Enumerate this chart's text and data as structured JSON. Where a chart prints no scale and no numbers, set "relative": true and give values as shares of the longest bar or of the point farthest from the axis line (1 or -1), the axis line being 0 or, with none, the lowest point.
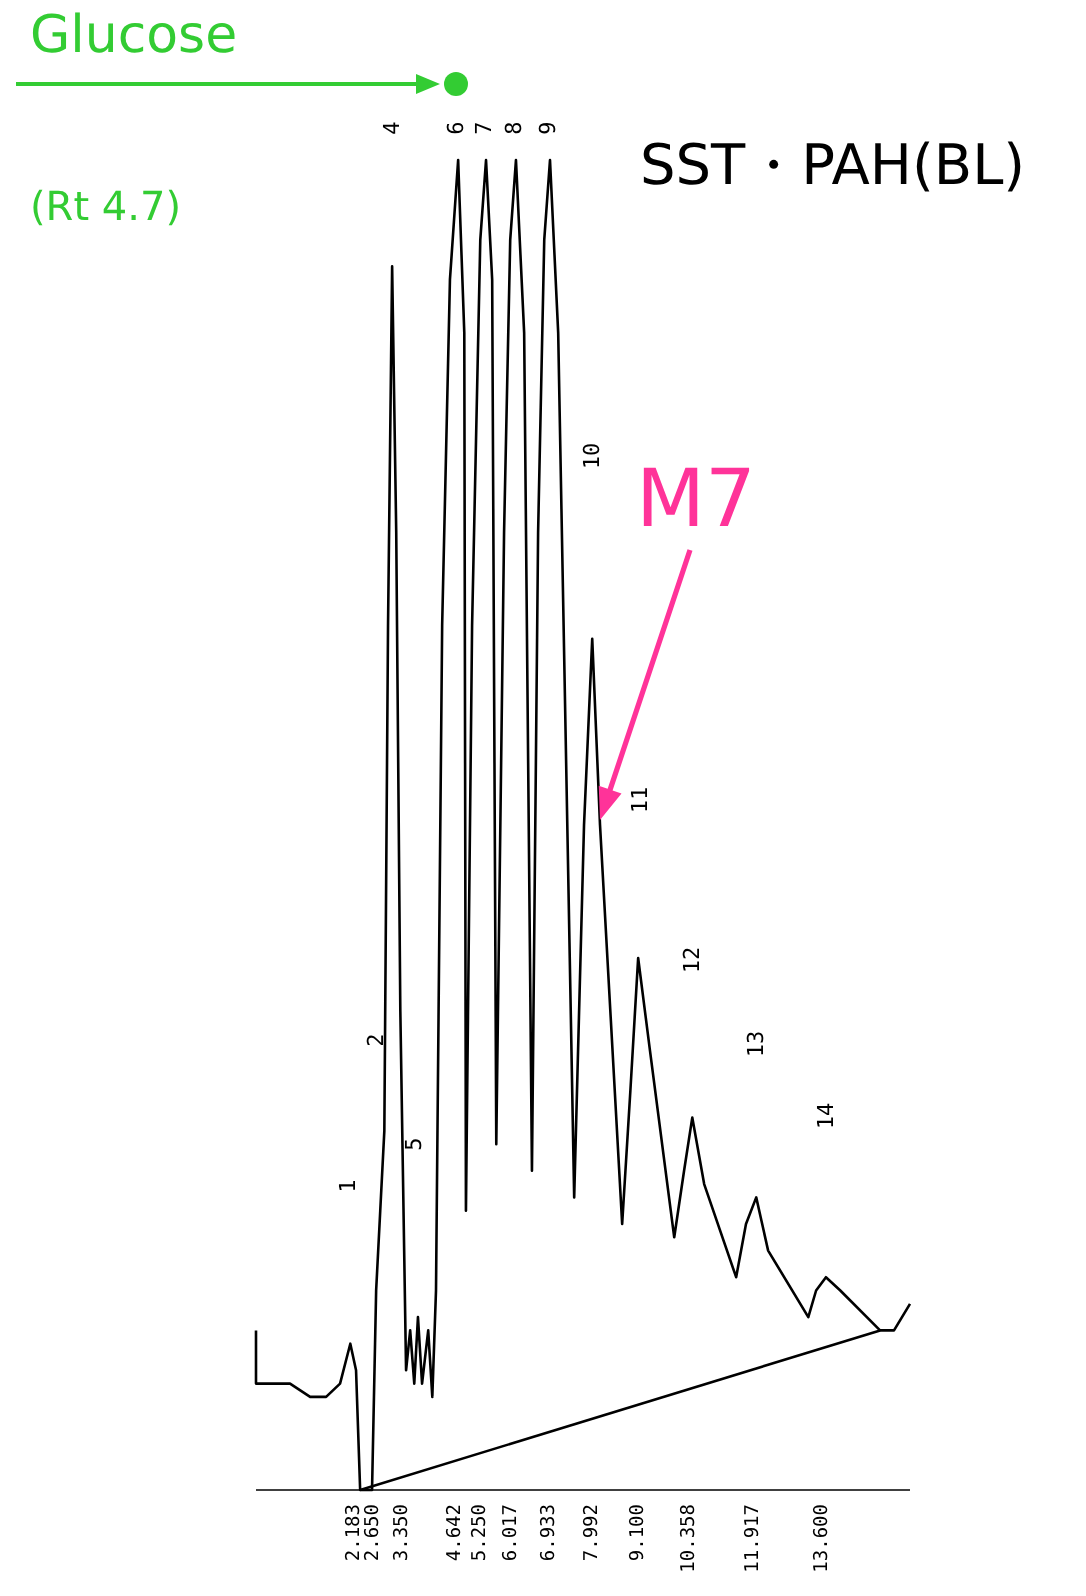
{
  "chart_data": {
    "type": "line",
    "title": "SST・PAH(BL)",
    "relative": true,
    "tick_labels": "x",
    "xlim": [
      -0.21,
      15.74
    ],
    "xticks": [
      2.183,
      {
        "value": 2.65,
        "label": "2.650"
      },
      {
        "value": 3.35,
        "label": "3.350"
      },
      4.642,
      {
        "value": 5.25,
        "label": "5.250"
      },
      6.017,
      6.933,
      7.992,
      {
        "value": 9.1,
        "label": "9.100"
      },
      10.358,
      11.917,
      {
        "value": 13.6,
        "label": "13.600"
      }
    ],
    "series": [
      {
        "color": "#000000",
        "x": [
          -0.21,
          -0.21,
          0.13,
          0.62,
          1.11,
          1.5,
          1.84,
          2.09,
          2.23,
          2.33,
          2.62,
          2.72,
          2.82,
          2.92,
          3.01,
          3.11,
          3.21,
          3.31,
          3.45,
          3.55,
          3.65,
          3.74,
          3.84,
          3.99,
          4.09,
          4.18,
          4.33,
          4.52,
          4.72,
          4.87,
          4.91,
          5.06,
          5.26,
          5.4,
          5.55,
          5.65,
          5.84,
          5.99,
          6.13,
          6.33,
          6.52,
          6.67,
          6.82,
          6.96,
          7.16,
          7.55,
          7.79,
          7.99,
          8.18,
          8.72,
          8.92,
          9.11,
          9.4,
          9.99,
          10.23,
          10.43,
          10.72,
          11.5,
          11.74,
          11.99,
          12.28,
          13.26,
          13.45,
          13.69,
          14.04,
          15.01,
          15.35,
          15.74
        ],
        "values": [
          0.12,
          0.08,
          0.08,
          0.08,
          0.07,
          0.07,
          0.08,
          0.11,
          0.09,
          0,
          0,
          0.15,
          0.21,
          0.27,
          0.65,
          0.92,
          0.72,
          0.36,
          0.09,
          0.12,
          0.08,
          0.13,
          0.08,
          0.12,
          0.07,
          0.15,
          0.65,
          0.91,
          1,
          0.87,
          0.21,
          0.65,
          0.94,
          1,
          0.91,
          0.26,
          0.72,
          0.94,
          1,
          0.87,
          0.24,
          0.72,
          0.94,
          1,
          0.87,
          0.22,
          0.5,
          0.64,
          0.5,
          0.2,
          0.3,
          0.4,
          0.33,
          0.19,
          0.24,
          0.28,
          0.23,
          0.16,
          0.2,
          0.22,
          0.18,
          0.13,
          0.15,
          0.16,
          0.15,
          0.12,
          0.12,
          0.14
        ]
      },
      {
        "color": "#000000",
        "x": [
          2.33,
          15.01
        ],
        "values": [
          0,
          0.12
        ]
      }
    ],
    "annotations": [
      "Glucose",
      "(Rt 4.7)",
      "M7",
      "1",
      "2",
      "4",
      "5",
      "6",
      "7",
      "8",
      "9",
      "10",
      "11",
      "12",
      "13",
      "14"
    ]
  }
}
